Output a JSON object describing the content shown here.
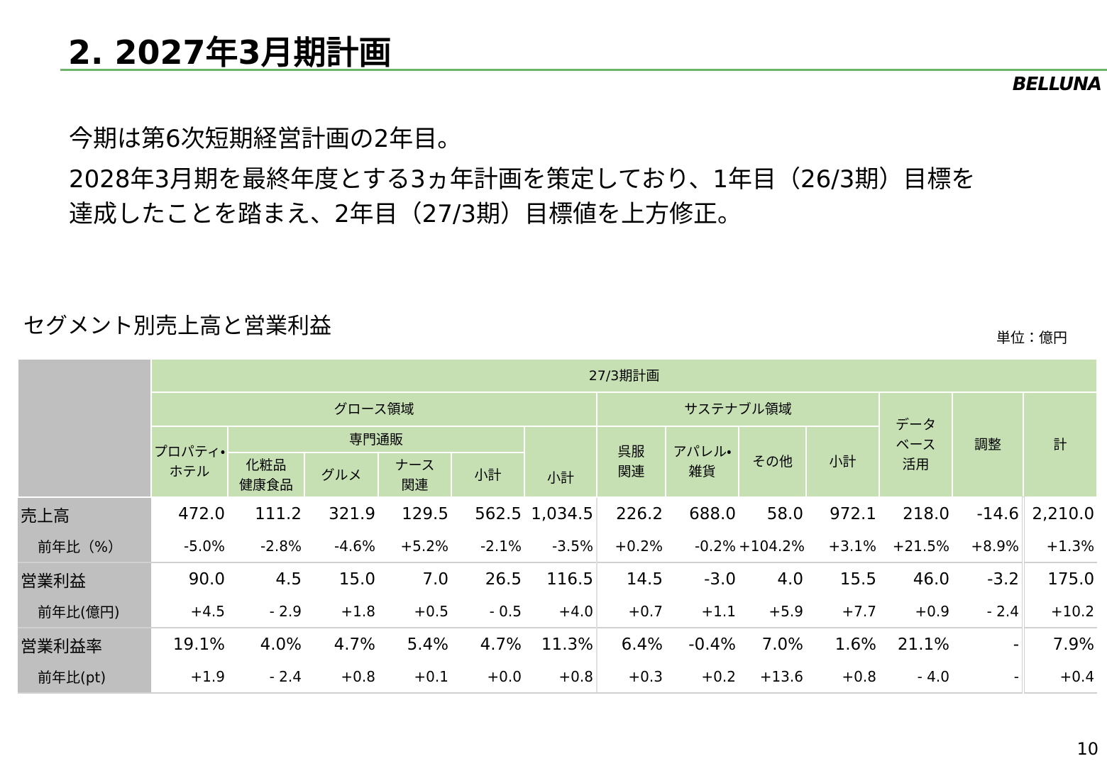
{
  "header": {
    "title": "2. 2027年3月期計画",
    "logo": "BELLUNA"
  },
  "body": {
    "lines": [
      "今期は第6次短期経営計画の2年目。",
      "2028年3月期を最終年度とする3ヵ年計画を策定しており、1年目（26/3期）目標を",
      "達成したことを踏まえ、2年目（27/3期）目標値を上方修正。"
    ]
  },
  "table": {
    "caption": "セグメント別売上高と営業利益",
    "unit": "単位：億円",
    "header": {
      "plan": "27/3期計画",
      "growth": "グロース領域",
      "specialty": "専門通販",
      "sustainable": "サステナブル領域",
      "columns": [
        "プロパティ・\nホテル",
        "化粧品\n健康食品",
        "グルメ",
        "ナース\n関連",
        "小計",
        "小計",
        "呉服\n関連",
        "アパレル・\n雑貨",
        "その他",
        "小計",
        "データ\nベース\n活用",
        "調整",
        "計"
      ]
    },
    "rows": [
      {
        "label": "売上高",
        "values": [
          "472.0",
          "111.2",
          "321.9",
          "129.5",
          "562.5",
          "1,034.5",
          "226.2",
          "688.0",
          "58.0",
          "972.1",
          "218.0",
          "-14.6",
          "2,210.0"
        ]
      },
      {
        "label": "前年比（%）",
        "values": [
          "-5.0%",
          "-2.8%",
          "-4.6%",
          "+5.2%",
          "-2.1%",
          "-3.5%",
          "+0.2%",
          "-0.2%",
          "+104.2%",
          "+3.1%",
          "+21.5%",
          "+8.9%",
          "+1.3%"
        ]
      },
      {
        "label": "営業利益",
        "values": [
          "90.0",
          "4.5",
          "15.0",
          "7.0",
          "26.5",
          "116.5",
          "14.5",
          "-3.0",
          "4.0",
          "15.5",
          "46.0",
          "-3.2",
          "175.0"
        ]
      },
      {
        "label": "前年比(億円)",
        "values": [
          "+4.5",
          "- 2.9",
          "+1.8",
          "+0.5",
          "- 0.5",
          "+4.0",
          "+0.7",
          "+1.1",
          "+5.9",
          "+7.7",
          "+0.9",
          "- 2.4",
          "+10.2"
        ]
      },
      {
        "label": "営業利益率",
        "values": [
          "19.1%",
          "4.0%",
          "4.7%",
          "5.4%",
          "4.7%",
          "11.3%",
          "6.4%",
          "-0.4%",
          "7.0%",
          "1.6%",
          "21.1%",
          "-",
          "7.9%"
        ]
      },
      {
        "label": "前年比(pt)",
        "values": [
          "+1.9",
          "- 2.4",
          "+0.8",
          "+0.1",
          "+0.0",
          "+0.8",
          "+0.3",
          "+0.2",
          "+13.6",
          "+0.8",
          "- 4.0",
          "-",
          "+0.4"
        ]
      }
    ]
  },
  "page_number": "10"
}
